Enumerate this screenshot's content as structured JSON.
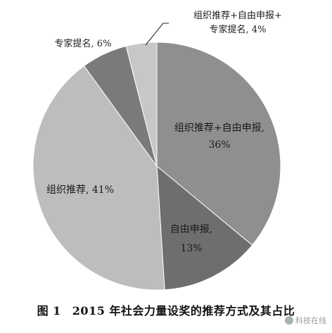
{
  "chart_data": {
    "type": "pie",
    "title": "",
    "slices": [
      {
        "label_lines": [
          "组织推荐+自由申报,",
          "36%"
        ],
        "value": 36,
        "color": "#8f8f8f"
      },
      {
        "label_lines": [
          "自由申报,",
          "13%"
        ],
        "value": 13,
        "color": "#6e6e6e"
      },
      {
        "label_lines": [
          "组织推荐, 41%"
        ],
        "value": 41,
        "color": "#bdbdbd"
      },
      {
        "label_lines": [
          "专家提名, 6%"
        ],
        "value": 6,
        "color": "#7a7a7a"
      },
      {
        "label_lines": [
          "组织推荐+自由申报+",
          "专家提名, 4%"
        ],
        "value": 4,
        "color": "#c7c7c7"
      }
    ],
    "start_angle_deg": 0,
    "direction": "clockwise"
  },
  "caption": {
    "figure_number": "图 1",
    "text": "2015 年社会力量设奖的推荐方式及其占比"
  },
  "watermark": {
    "text": "科技在线"
  }
}
